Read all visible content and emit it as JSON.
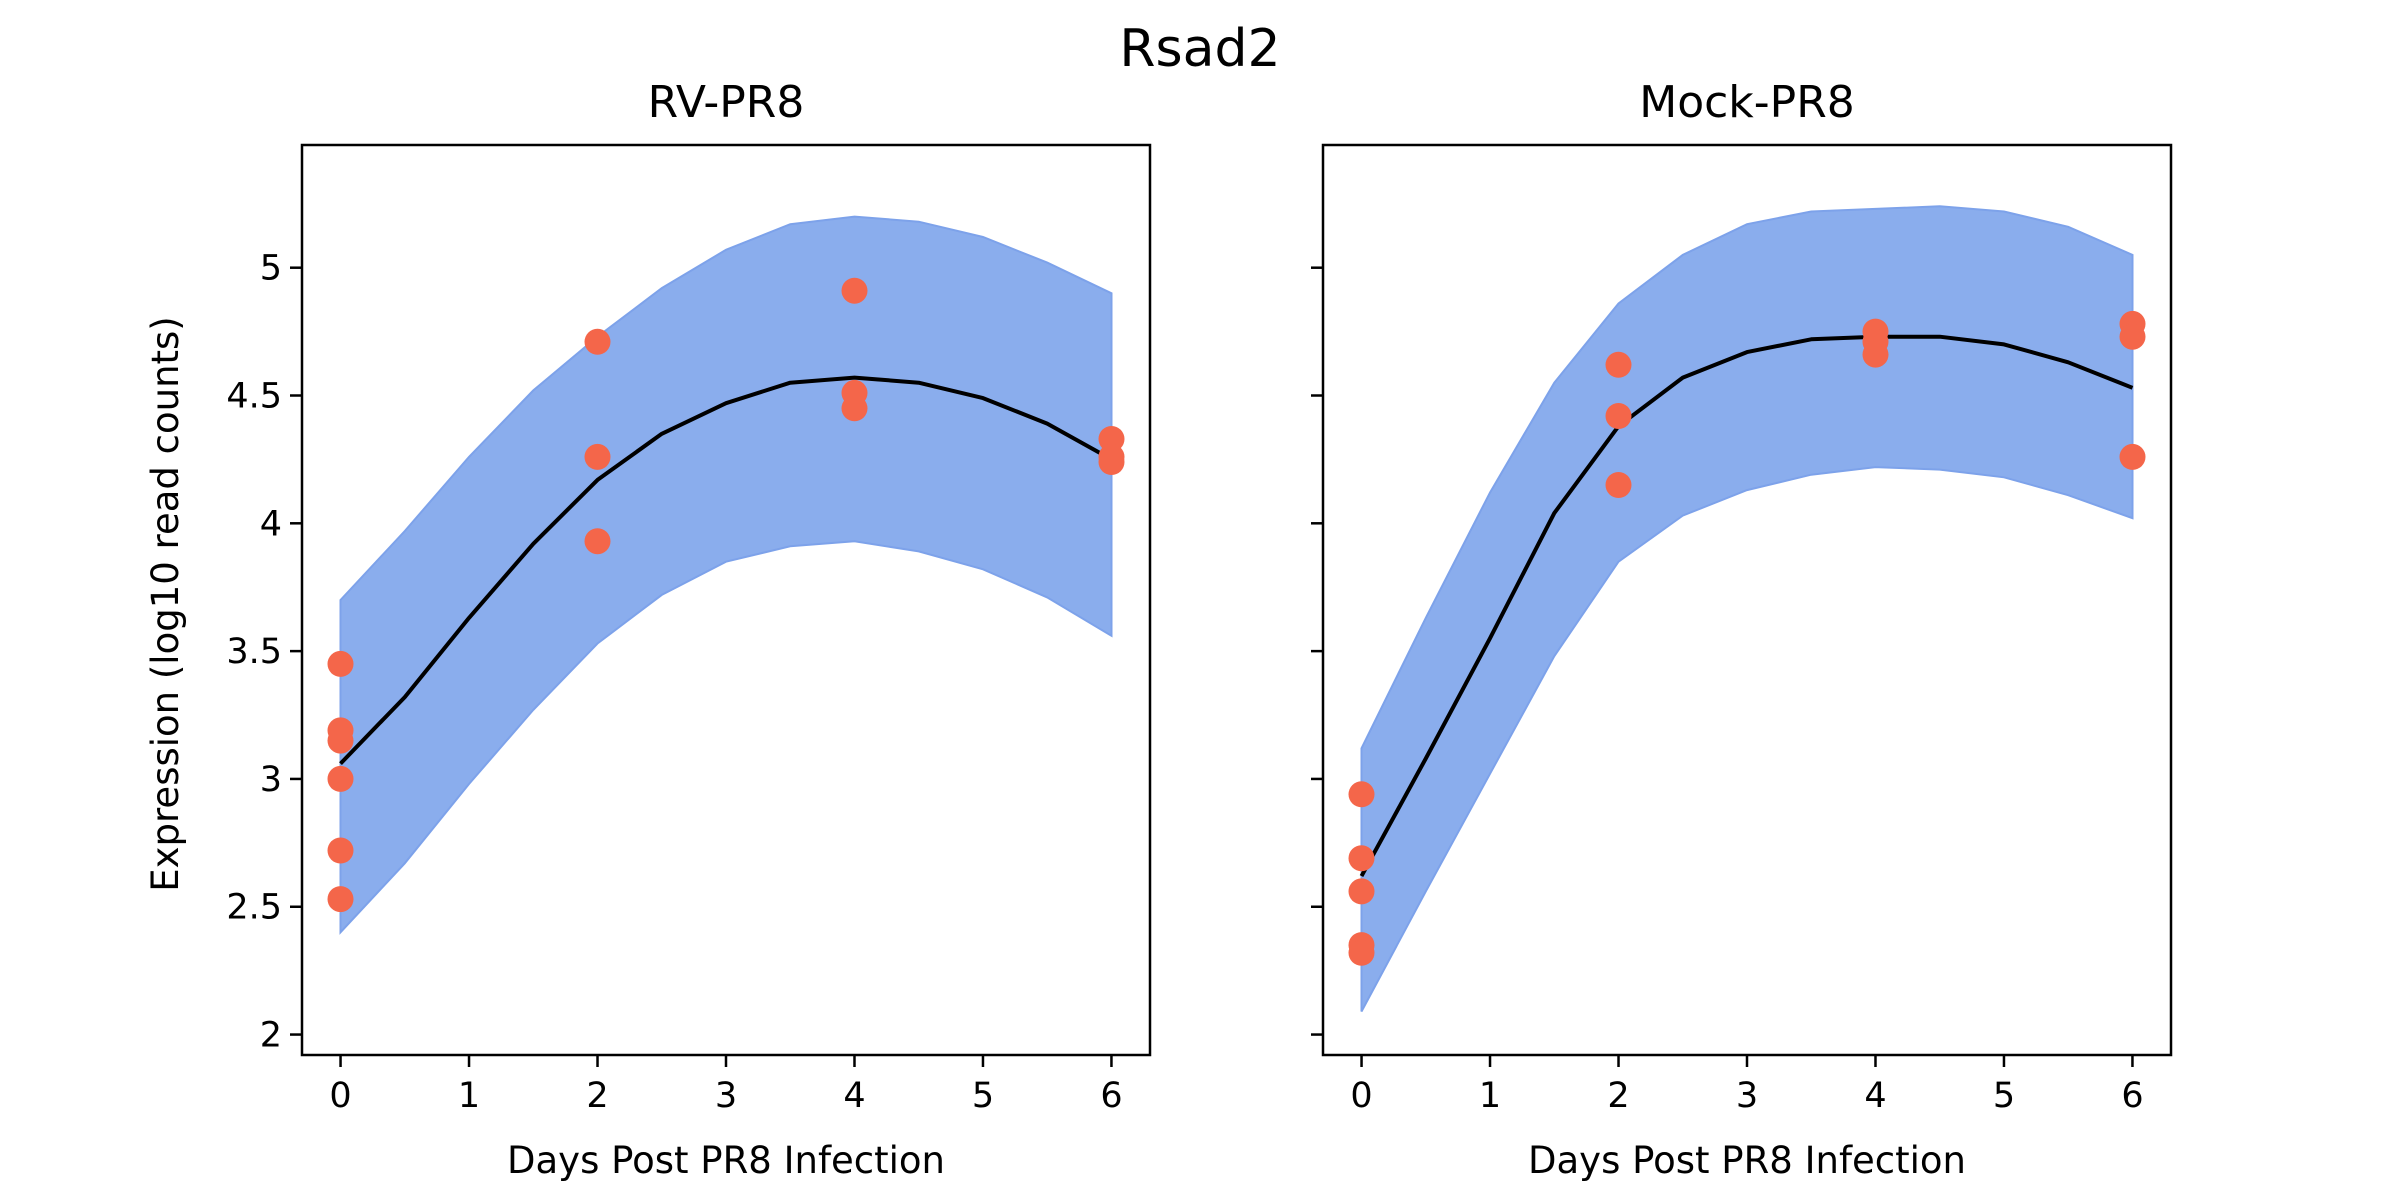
{
  "figure": {
    "suptitle": "Rsad2",
    "ylabel": "Expression (log10 read counts)",
    "colors": {
      "band": "#8aaded",
      "band_edge": "#7da2ea",
      "points": "#f4664a",
      "mean": "#000000"
    }
  },
  "chart_data": [
    {
      "type": "line",
      "title": "RV-PR8",
      "xlabel": "Days Post PR8 Infection",
      "ylabel": "Expression (log10 read counts)",
      "xlim": [
        -0.3,
        6.3
      ],
      "ylim": [
        1.92,
        5.48
      ],
      "x_ticks": [
        0,
        1,
        2,
        3,
        4,
        5,
        6
      ],
      "y_ticks": [
        2.0,
        2.5,
        3.0,
        3.5,
        4.0,
        4.5,
        5.0
      ],
      "grid": false,
      "mean_curve": {
        "x": [
          0,
          0.5,
          1,
          1.5,
          2,
          2.5,
          3,
          3.5,
          4,
          4.5,
          5,
          5.5,
          6
        ],
        "y": [
          3.06,
          3.32,
          3.63,
          3.92,
          4.17,
          4.35,
          4.47,
          4.55,
          4.57,
          4.55,
          4.49,
          4.39,
          4.25
        ]
      },
      "band_upper": {
        "x": [
          0,
          0.5,
          1,
          1.5,
          2,
          2.5,
          3,
          3.5,
          4,
          4.5,
          5,
          5.5,
          6
        ],
        "y": [
          3.7,
          3.97,
          4.26,
          4.52,
          4.73,
          4.92,
          5.07,
          5.17,
          5.2,
          5.18,
          5.12,
          5.02,
          4.9
        ]
      },
      "band_lower": {
        "x": [
          0,
          0.5,
          1,
          1.5,
          2,
          2.5,
          3,
          3.5,
          4,
          4.5,
          5,
          5.5,
          6
        ],
        "y": [
          2.4,
          2.67,
          2.98,
          3.27,
          3.53,
          3.72,
          3.85,
          3.91,
          3.93,
          3.89,
          3.82,
          3.71,
          3.56
        ]
      },
      "points": {
        "x": [
          0,
          0,
          0,
          0,
          0,
          0,
          2,
          2,
          2,
          4,
          4,
          4,
          6,
          6,
          6
        ],
        "y": [
          3.45,
          3.19,
          3.15,
          3.0,
          2.72,
          2.53,
          4.71,
          4.26,
          3.93,
          4.91,
          4.51,
          4.45,
          4.33,
          4.26,
          4.24
        ]
      }
    },
    {
      "type": "line",
      "title": "Mock-PR8",
      "xlabel": "Days Post PR8 Infection",
      "xlim": [
        -0.3,
        6.3
      ],
      "ylim": [
        1.92,
        5.48
      ],
      "x_ticks": [
        0,
        1,
        2,
        3,
        4,
        5,
        6
      ],
      "y_ticks": [
        2.0,
        2.5,
        3.0,
        3.5,
        4.0,
        4.5,
        5.0
      ],
      "shared_y": true,
      "grid": false,
      "mean_curve": {
        "x": [
          0,
          0.5,
          1,
          1.5,
          2,
          2.5,
          3,
          3.5,
          4,
          4.5,
          5,
          5.5,
          6
        ],
        "y": [
          2.62,
          3.08,
          3.55,
          4.04,
          4.38,
          4.57,
          4.67,
          4.72,
          4.73,
          4.73,
          4.7,
          4.63,
          4.53
        ]
      },
      "band_upper": {
        "x": [
          0,
          0.5,
          1,
          1.5,
          2,
          2.5,
          3,
          3.5,
          4,
          4.5,
          5,
          5.5,
          6
        ],
        "y": [
          3.12,
          3.63,
          4.12,
          4.55,
          4.86,
          5.05,
          5.17,
          5.22,
          5.23,
          5.24,
          5.22,
          5.16,
          5.05
        ]
      },
      "band_lower": {
        "x": [
          0,
          0.5,
          1,
          1.5,
          2,
          2.5,
          3,
          3.5,
          4,
          4.5,
          5,
          5.5,
          6
        ],
        "y": [
          2.09,
          2.56,
          3.02,
          3.48,
          3.85,
          4.03,
          4.13,
          4.19,
          4.22,
          4.21,
          4.18,
          4.11,
          4.02
        ]
      },
      "points": {
        "x": [
          0,
          0,
          0,
          0,
          0,
          2,
          2,
          2,
          4,
          4,
          4,
          6,
          6,
          6
        ],
        "y": [
          2.94,
          2.69,
          2.56,
          2.35,
          2.32,
          4.62,
          4.42,
          4.15,
          4.75,
          4.71,
          4.66,
          4.78,
          4.73,
          4.26
        ]
      }
    }
  ]
}
